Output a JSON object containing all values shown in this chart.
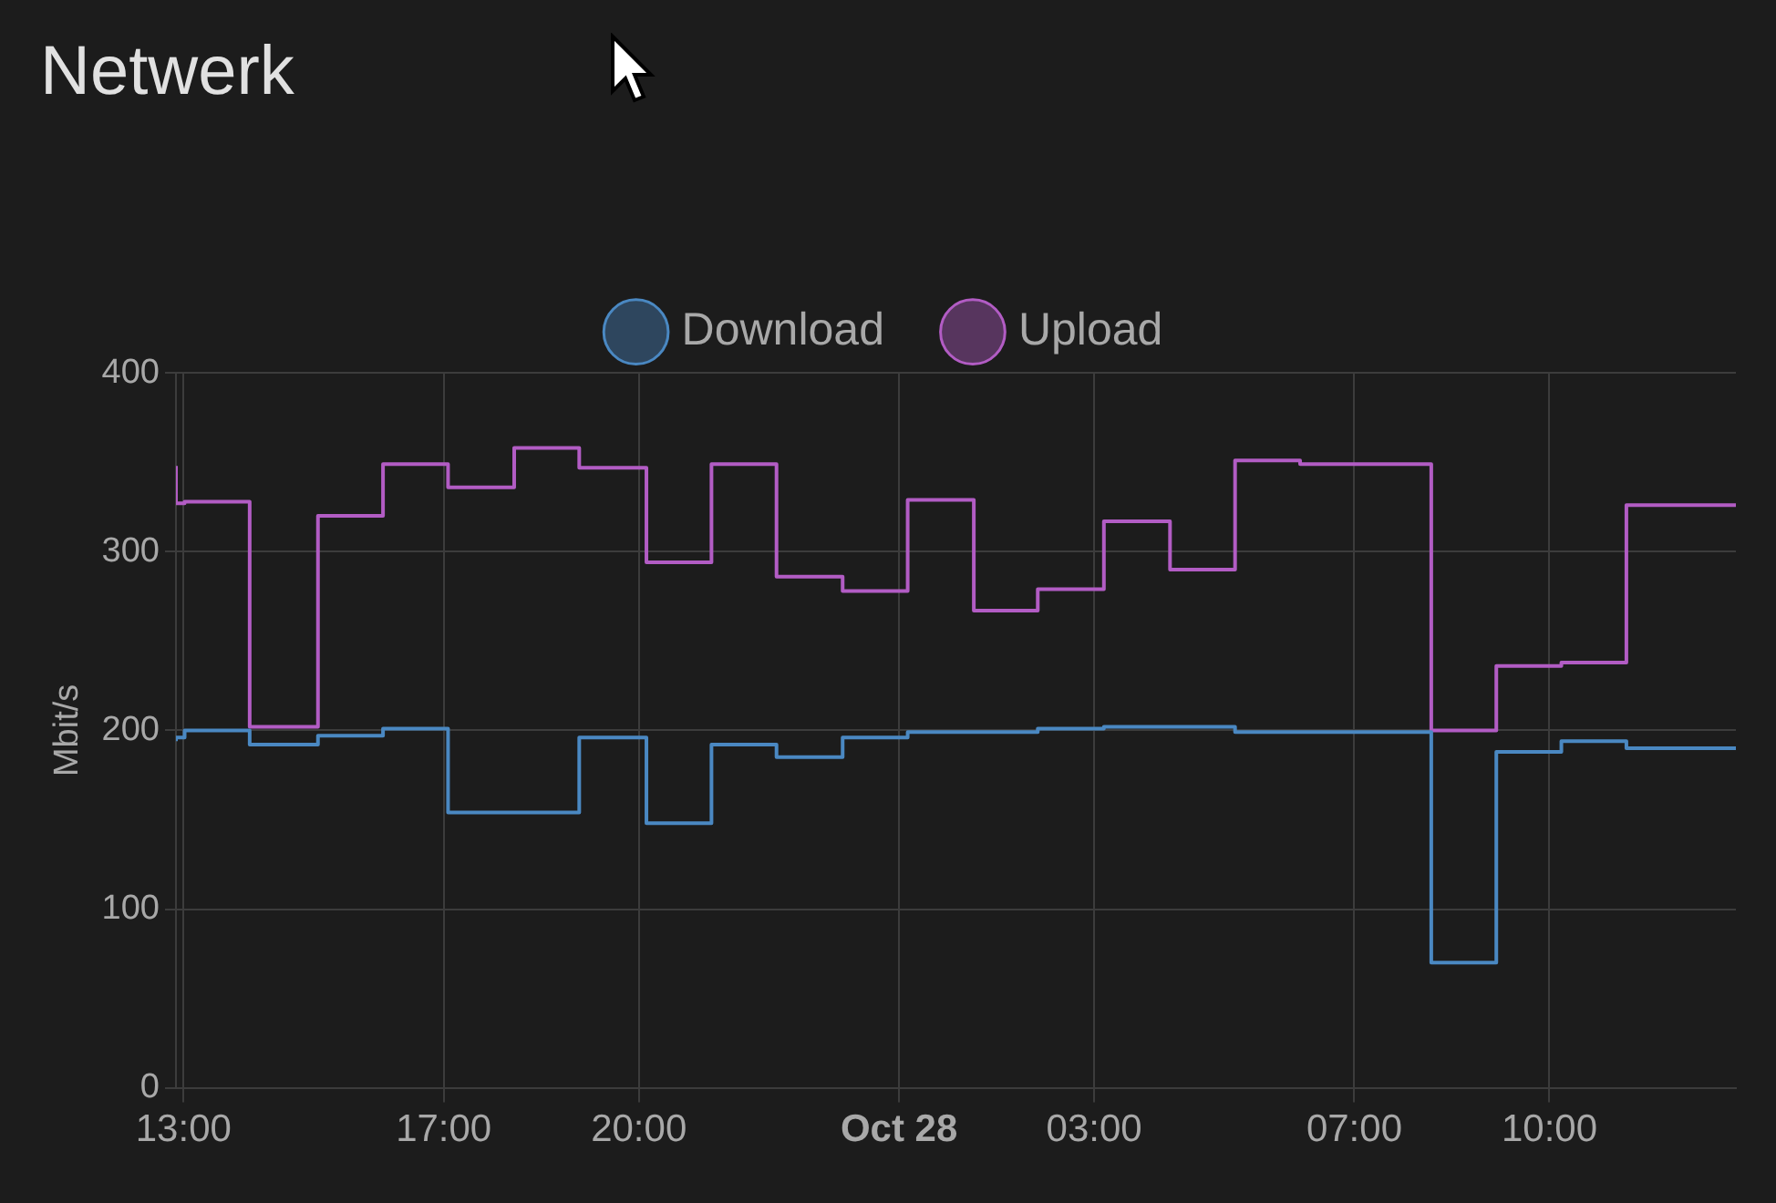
{
  "chart_data": {
    "type": "step",
    "title": "Netwerk",
    "ylabel": "Mbit/s",
    "x": [
      "--10-27T12:53",
      "--10-27T13:01",
      "--10-27T14:01",
      "--10-27T15:04",
      "--10-27T16:04",
      "--10-27T17:04",
      "--10-27T18:05",
      "--10-27T19:05",
      "--10-27T20:07",
      "--10-27T21:07",
      "--10-27T22:07",
      "--10-27T23:08",
      "--10-28T00:08",
      "--10-28T01:09",
      "--10-28T02:08",
      "--10-28T03:09",
      "--10-28T04:10",
      "--10-28T05:10",
      "--10-28T06:10",
      "--10-28T07:11",
      "--10-28T08:11",
      "--10-28T09:11",
      "--10-28T10:11",
      "--10-28T11:11",
      "--10-28T12:11",
      "--10-28T12:52"
    ],
    "series": [
      {
        "name": "Download",
        "color": "#4a88c2",
        "values": [
          194,
          196,
          200,
          192,
          197,
          201,
          154,
          154,
          196,
          148,
          192,
          185,
          196,
          199,
          199,
          201,
          202,
          202,
          199,
          199,
          199,
          70,
          188,
          194,
          190,
          190
        ]
      },
      {
        "name": "Upload",
        "color": "#b25cc4",
        "values": [
          348,
          327,
          328,
          202,
          320,
          349,
          336,
          358,
          347,
          294,
          349,
          286,
          278,
          329,
          267,
          279,
          317,
          290,
          351,
          349,
          349,
          200,
          236,
          238,
          326,
          326
        ]
      }
    ],
    "xlim": [
      "--10-27T12:53",
      "--10-28T12:52"
    ],
    "xticks": [
      {
        "value": "--10-27T13:00",
        "label": "13:00"
      },
      {
        "value": "--10-27T17:00",
        "label": "17:00"
      },
      {
        "value": "--10-27T20:00",
        "label": "20:00"
      },
      {
        "value": "--10-28T00:00",
        "label": "Oct 28"
      },
      {
        "value": "--10-28T03:00",
        "label": "03:00"
      },
      {
        "value": "--10-28T07:00",
        "label": "07:00"
      },
      {
        "value": "--10-28T10:00",
        "label": "10:00"
      }
    ],
    "ylim": [
      0,
      400
    ],
    "yticks": [
      0,
      100,
      200,
      300,
      400
    ],
    "grid": true,
    "legend": "top",
    "marker": "none",
    "line_style": "solid"
  }
}
